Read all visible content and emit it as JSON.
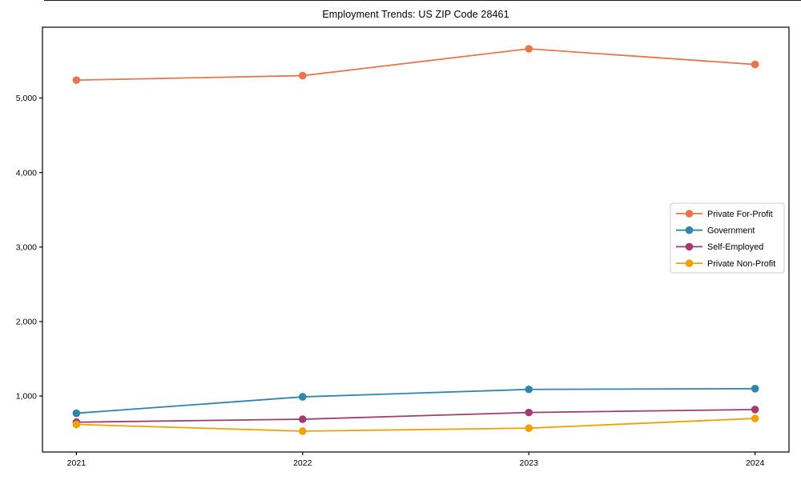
{
  "page": {
    "title": "Employment Trends: US ZIP Code 28461"
  },
  "chart_data": {
    "type": "line",
    "title": "Employment Trends: US ZIP Code 28461",
    "x": [
      2021,
      2022,
      2023,
      2024
    ],
    "xtick_labels": [
      "2021",
      "2022",
      "2023",
      "2024"
    ],
    "yticks": [
      1000,
      2000,
      3000,
      4000,
      5000
    ],
    "ytick_labels": [
      "1,000",
      "2,000",
      "3,000",
      "4,000",
      "5,000"
    ],
    "xlim": [
      2020.85,
      2024.15
    ],
    "ylim": [
      250,
      5950
    ],
    "grid": false,
    "legend_position": "center-right",
    "marker": "circle",
    "series": [
      {
        "name": "Private For-Profit",
        "color": "#E8764B",
        "values": [
          5240,
          5300,
          5660,
          5450
        ]
      },
      {
        "name": "Government",
        "color": "#2E86AB",
        "values": [
          770,
          990,
          1090,
          1100
        ]
      },
      {
        "name": "Self-Employed",
        "color": "#A23B72",
        "values": [
          650,
          690,
          780,
          820
        ]
      },
      {
        "name": "Private Non-Profit",
        "color": "#F2A104",
        "values": [
          620,
          530,
          570,
          700
        ]
      }
    ],
    "axis_color": "#000000",
    "legend_border_color": "#cccccc",
    "background_color": "#ffffff"
  }
}
